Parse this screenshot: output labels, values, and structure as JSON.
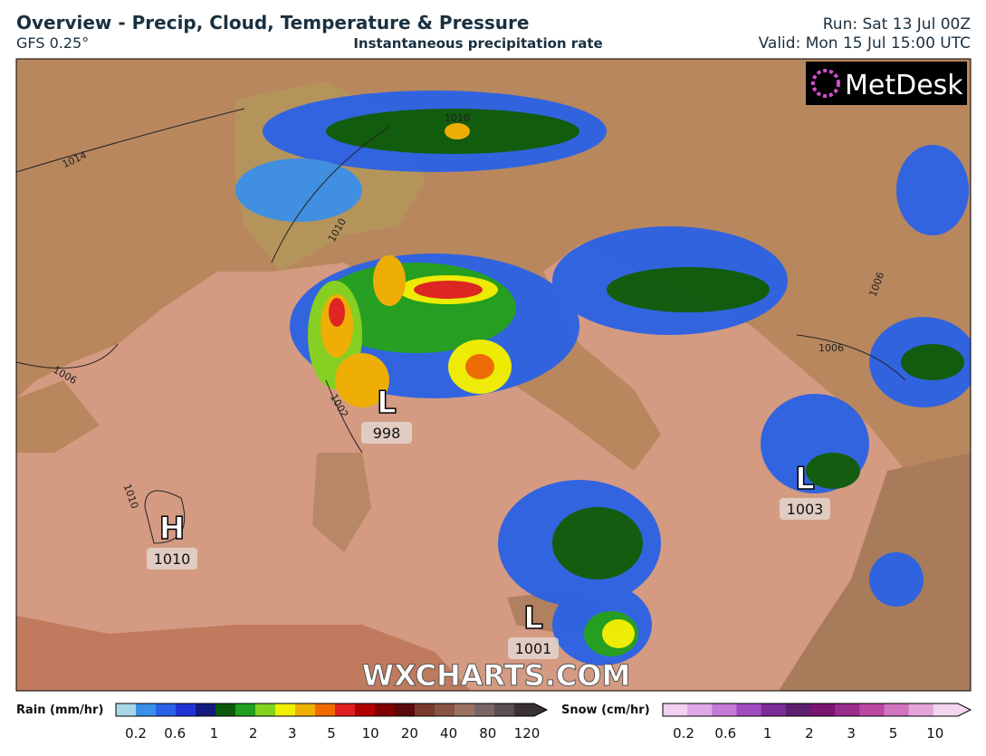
{
  "header": {
    "title": "Overview - Precip, Cloud, Temperature & Pressure",
    "model": "GFS 0.25°",
    "subtitle": "Instantaneous precipitation rate",
    "run": "Run: Sat 13 Jul 00Z",
    "valid": "Valid: Mon 15 Jul 15:00 UTC"
  },
  "logo": "MetDesk",
  "watermark": "WXCHARTS.COM",
  "pressure_systems": [
    {
      "symbol": "L",
      "value": "998"
    },
    {
      "symbol": "H",
      "value": "1010"
    },
    {
      "symbol": "L",
      "value": "1003"
    },
    {
      "symbol": "L",
      "value": "1001"
    }
  ],
  "isobar_labels": [
    "1014",
    "1010",
    "1006",
    "1002",
    "1010",
    "1010",
    "1006",
    "1006"
  ],
  "legend": {
    "rain": {
      "title": "Rain (mm/hr)",
      "ticks": [
        "0.2",
        "0.6",
        "1",
        "2",
        "3",
        "5",
        "10",
        "20",
        "40",
        "80",
        "120"
      ],
      "colors": [
        "#a8d8e8",
        "#3a8fe8",
        "#2a62e6",
        "#1f33d6",
        "#141a80",
        "#0a5a0a",
        "#1ea01e",
        "#82d21e",
        "#f0f000",
        "#f0b000",
        "#f06a00",
        "#e02020",
        "#b00000",
        "#800000",
        "#5a0a0a",
        "#7a3a2a",
        "#8a5444",
        "#9a7262",
        "#7a6666",
        "#585050",
        "#3a3232"
      ]
    },
    "snow": {
      "title": "Snow (cm/hr)",
      "ticks": [
        "0.2",
        "0.6",
        "1",
        "2",
        "3",
        "5",
        "10"
      ],
      "colors": [
        "#f2d0f2",
        "#e0a8e6",
        "#c47ad6",
        "#a04cc0",
        "#7c2c96",
        "#5c1e6e",
        "#7a1470",
        "#9a2a8c",
        "#bc48a4",
        "#d274c0",
        "#e4a6d8",
        "#f4d6f0"
      ]
    }
  }
}
